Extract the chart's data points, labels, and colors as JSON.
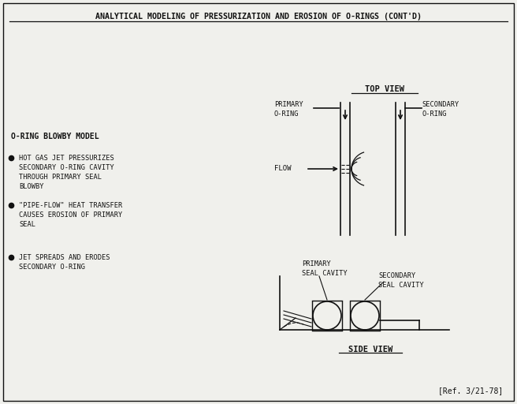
{
  "title": "ANALYTICAL MODELING OF PRESSURIZATION AND EROSION OF O-RINGS (CONT'D)",
  "bg_color": "#f0f0ec",
  "text_color": "#111111",
  "left_section": {
    "model_label": "O-RING BLOWBY MODEL",
    "bullets": [
      "HOT GAS JET PRESSURIZES\nSECONDARY O-RING CAVITY\nTHROUGH PRIMARY SEAL\nBLOWBY",
      "\"PIPE-FLOW\" HEAT TRANSFER\nCAUSES EROSION OF PRIMARY\nSEAL",
      "JET SPREADS AND ERODES\nSECONDARY O-RING"
    ]
  },
  "right_section": {
    "top_view_label": "TOP VIEW",
    "side_view_label": "SIDE VIEW",
    "primary_oring_label": "PRIMARY\nO-RING",
    "secondary_oring_label": "SECONDARY\nO-RING",
    "flow_label": "FLOW",
    "primary_seal_label": "PRIMARY\nSEAL CAVITY",
    "secondary_seal_label": "SECONDARY\nSEAL CAVITY"
  },
  "ref": "[Ref. 3/21-78]"
}
